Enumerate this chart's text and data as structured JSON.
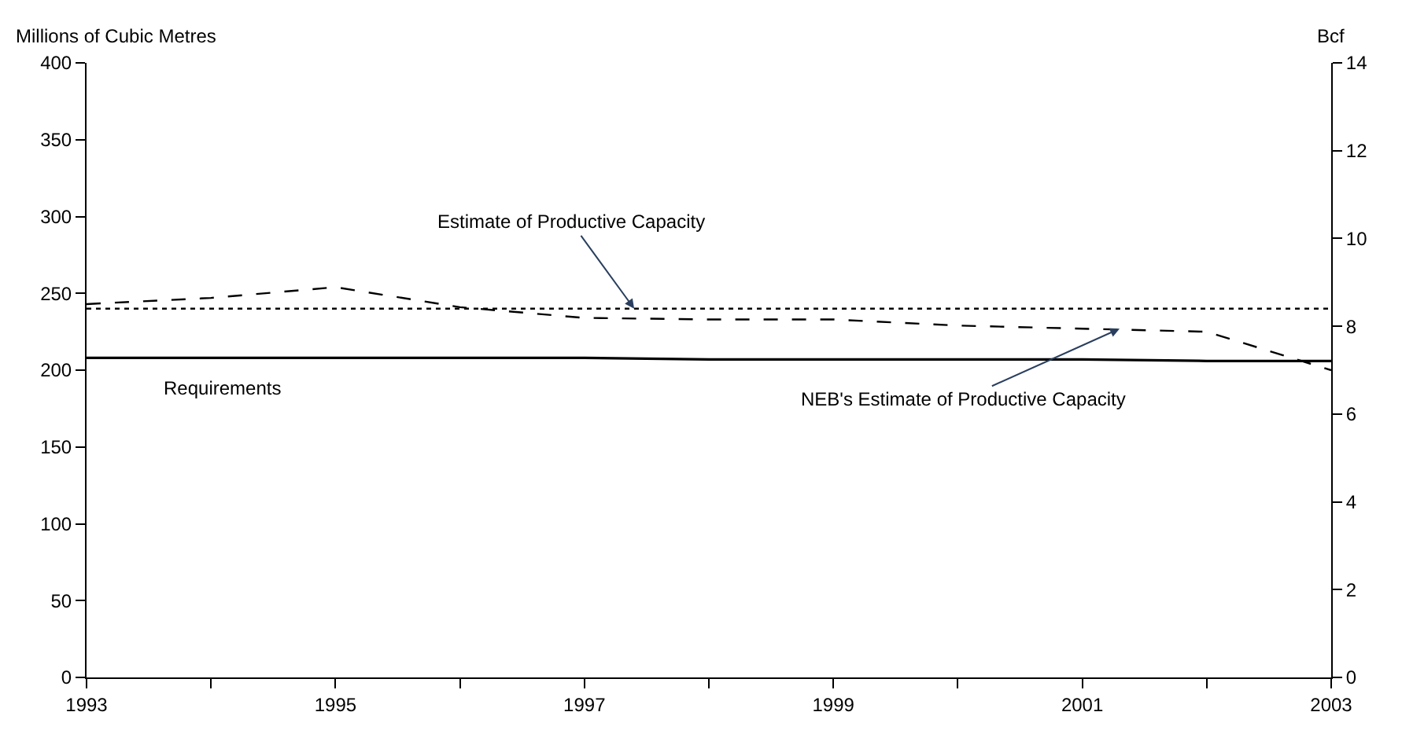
{
  "chart_data": {
    "type": "line",
    "ylabel": "Millions of Cubic Metres",
    "y2label": "Bcf",
    "x": [
      1993,
      1994,
      1995,
      1996,
      1997,
      1998,
      1999,
      2000,
      2001,
      2002,
      2003
    ],
    "series": [
      {
        "color": "#000000",
        "line_style": "dashed",
        "values": [
          243,
          247,
          254,
          241,
          234,
          233,
          233,
          229,
          227,
          225,
          200
        ]
      },
      {
        "color": "#000000",
        "line_style": "dotted",
        "values": [
          240,
          240,
          240,
          240,
          240,
          240,
          240,
          240,
          240,
          240,
          240
        ]
      },
      {
        "color": "#000000",
        "line_style": "solid",
        "values": [
          208,
          208,
          208,
          208,
          208,
          207,
          207,
          207,
          207,
          206,
          206
        ]
      }
    ],
    "annotations": [
      {
        "text": "Estimate of Productive Capacity",
        "x": 1997.4,
        "y": 240
      },
      {
        "text": "NEB's Estimate of Productive Capacity",
        "x": 2001.3,
        "y": 227
      },
      "Requirements"
    ],
    "xlim": [
      1993,
      2003
    ],
    "xticks": [
      1993,
      {
        "value": 1994,
        "label": null
      },
      1995,
      {
        "value": 1996,
        "label": null
      },
      1997,
      {
        "value": 1998,
        "label": null
      },
      1999,
      {
        "value": 2000,
        "label": null
      },
      2001,
      {
        "value": 2002,
        "label": null
      },
      2003
    ],
    "ylim": [
      0,
      400
    ],
    "yticks": [
      0,
      50,
      100,
      150,
      200,
      250,
      300,
      350,
      400
    ],
    "y2lim": [
      0,
      14
    ],
    "y2ticks": [
      0,
      2,
      4,
      6,
      8,
      10,
      12,
      14
    ],
    "marker": "none"
  }
}
